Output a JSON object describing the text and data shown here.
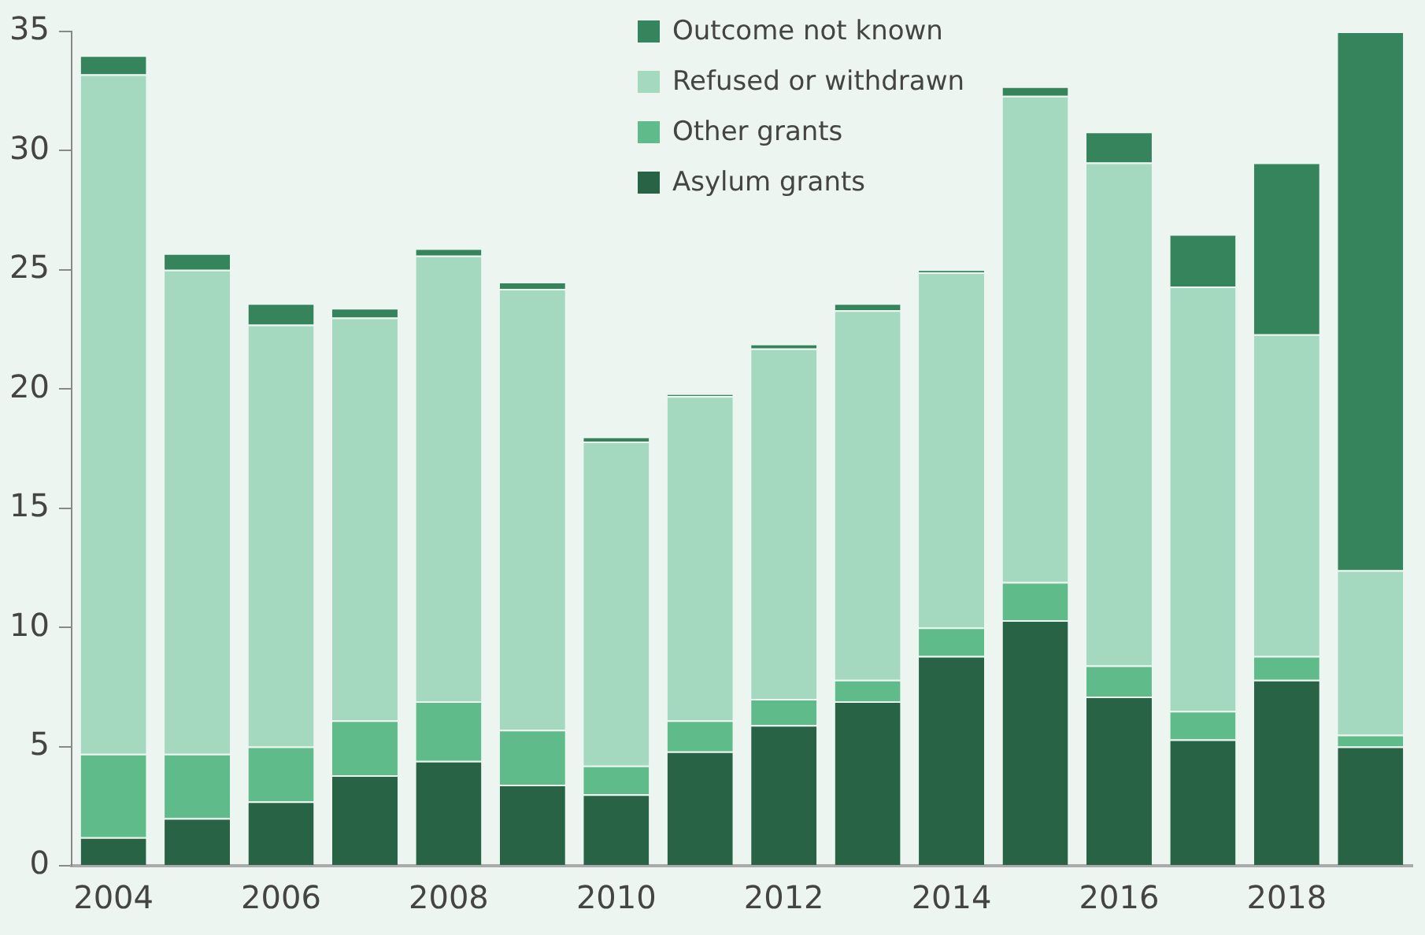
{
  "chart_data": {
    "type": "bar",
    "stacked": true,
    "categories": [
      "2004",
      null,
      "2006",
      null,
      "2008",
      null,
      "2010",
      null,
      "2012",
      null,
      "2014",
      null,
      "2016",
      null,
      "2018",
      null
    ],
    "series": [
      {
        "name": "Asylum grants",
        "color": "#276344",
        "values": [
          1.2,
          2.0,
          2.7,
          3.8,
          4.4,
          3.4,
          3.0,
          4.8,
          5.9,
          6.9,
          8.8,
          10.3,
          7.1,
          5.3,
          7.8,
          5.0
        ]
      },
      {
        "name": "Other grants",
        "color": "#5fbb8a",
        "values": [
          3.5,
          2.7,
          2.3,
          2.3,
          2.5,
          2.3,
          1.2,
          1.3,
          1.1,
          0.9,
          1.2,
          1.6,
          1.3,
          1.2,
          1.0,
          0.5
        ]
      },
      {
        "name": "Refused or withdrawn",
        "color": "#a4d9bf",
        "values": [
          28.5,
          20.3,
          17.7,
          16.9,
          18.7,
          18.5,
          13.6,
          13.6,
          14.7,
          15.5,
          14.9,
          20.4,
          21.1,
          17.8,
          13.5,
          6.9
        ]
      },
      {
        "name": "Outcome not known",
        "color": "#35845c",
        "values": [
          0.8,
          0.7,
          0.9,
          0.4,
          0.3,
          0.3,
          0.2,
          0.1,
          0.2,
          0.3,
          0.1,
          0.4,
          1.3,
          2.2,
          7.2,
          22.6
        ]
      }
    ],
    "ylim": [
      0,
      35
    ],
    "yticks": [
      0,
      5,
      10,
      15,
      20,
      25,
      30,
      35
    ],
    "grid": false,
    "legend": "top"
  }
}
